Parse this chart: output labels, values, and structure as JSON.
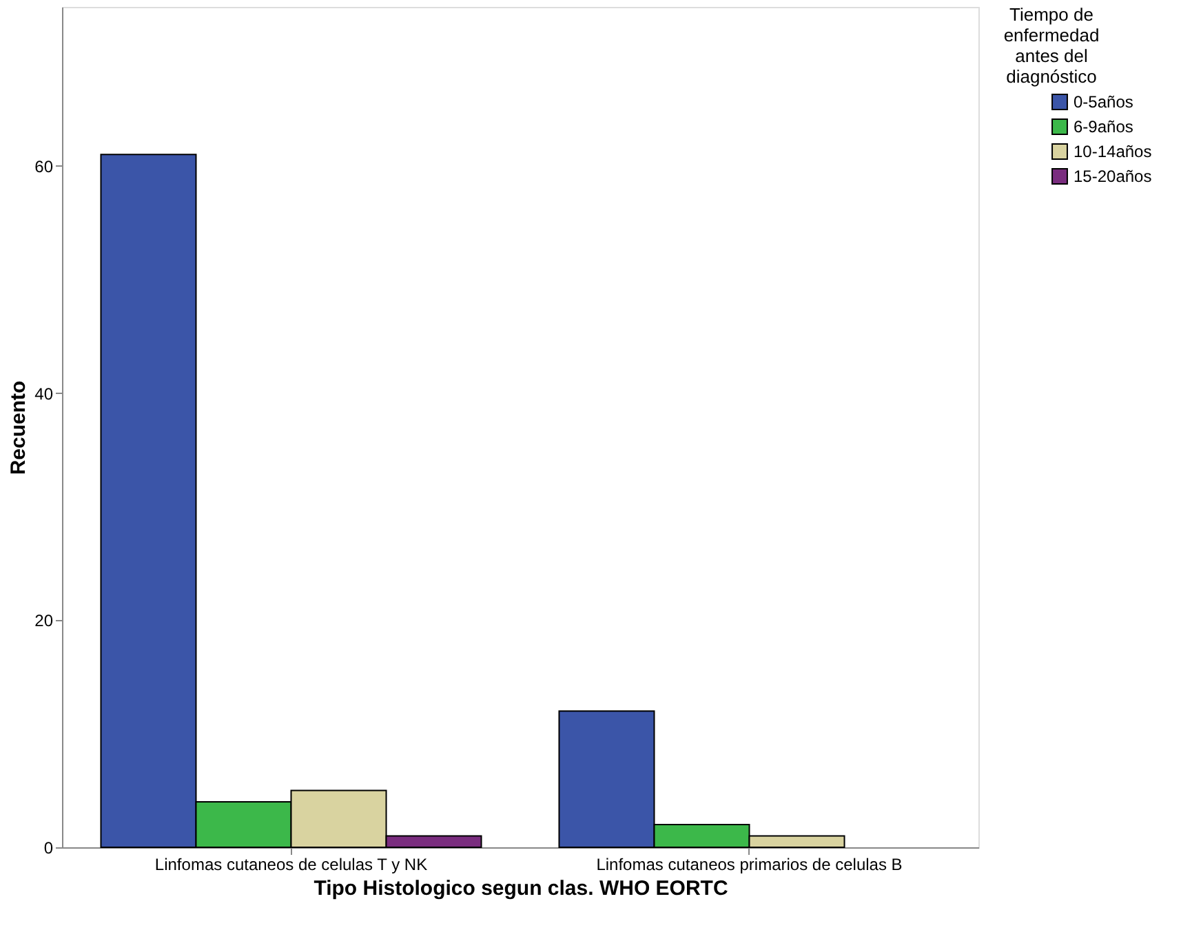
{
  "chart_data": {
    "type": "bar",
    "xlabel": "Tipo Histologico segun clas. WHO EORTC",
    "ylabel": "Recuento",
    "legend_title": "Tiempo de\nenfermedad\nantes del\ndiagnóstico",
    "categories": [
      "Linfomas cutaneos de celulas T y NK",
      "Linfomas cutaneos primarios de celulas B"
    ],
    "series": [
      {
        "name": "0-5años",
        "color": "#3b55a8",
        "values": [
          61,
          12
        ]
      },
      {
        "name": "6-9años",
        "color": "#3cb84a",
        "values": [
          4,
          2
        ]
      },
      {
        "name": "10-14años",
        "color": "#d9d3a0",
        "values": [
          5,
          1
        ]
      },
      {
        "name": "15-20años",
        "color": "#7a2d7f",
        "values": [
          1,
          null
        ]
      }
    ],
    "ylim": [
      0,
      74
    ],
    "yticks": [
      0,
      20,
      40,
      60
    ],
    "grid": false,
    "legend": "top right"
  }
}
